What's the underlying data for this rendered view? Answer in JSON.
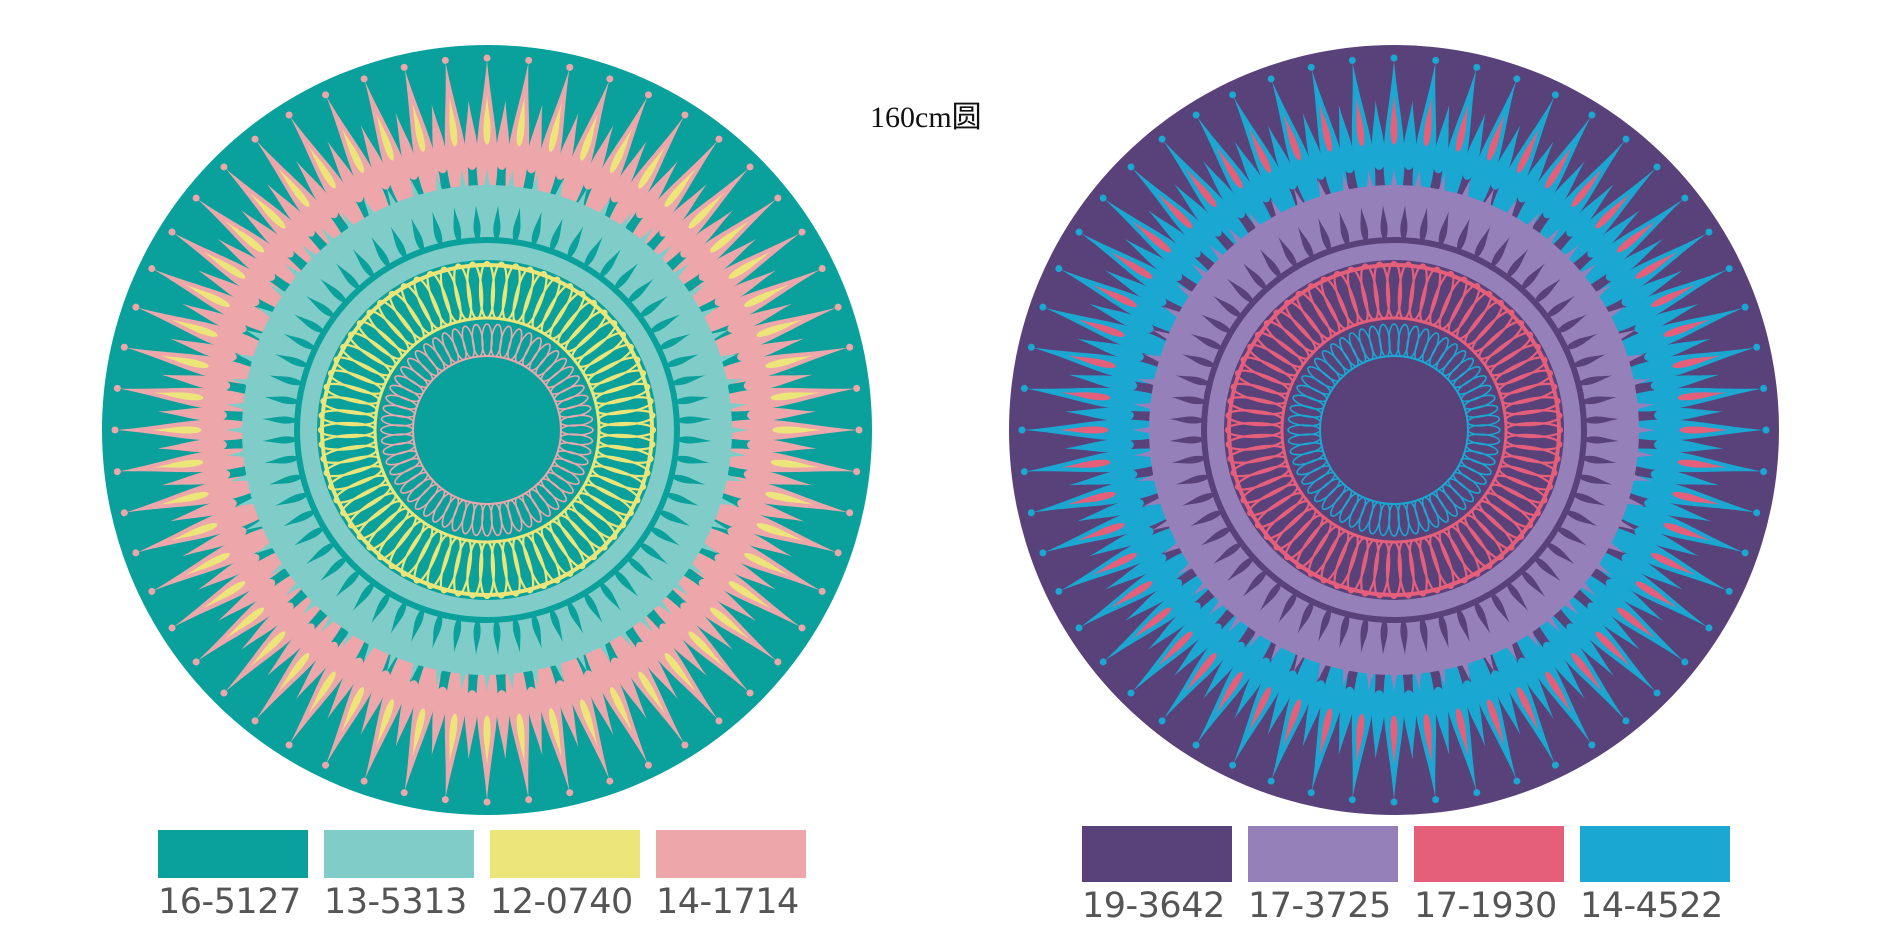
{
  "title": "160cm圆",
  "left_design": {
    "colors": {
      "base": "#0aa09c",
      "ring_light": "#7fccc8",
      "ring_yellow": "#ece67a",
      "ring_pink": "#eda7ab"
    },
    "swatches": [
      {
        "code": "16-5127",
        "color": "#0aa09c"
      },
      {
        "code": "13-5313",
        "color": "#7fccc8"
      },
      {
        "code": "12-0740",
        "color": "#ece67a"
      },
      {
        "code": "14-1714",
        "color": "#eda7ab"
      }
    ]
  },
  "right_design": {
    "colors": {
      "base": "#59417a",
      "ring_light": "#9580ba",
      "ring_yellow": "#e65f7a",
      "ring_pink": "#1aa7d2"
    },
    "swatches": [
      {
        "code": "19-3642",
        "color": "#59417a"
      },
      {
        "code": "17-3725",
        "color": "#9580ba"
      },
      {
        "code": "17-1930",
        "color": "#e65f7a"
      },
      {
        "code": "14-4522",
        "color": "#1aa7d2"
      }
    ]
  }
}
